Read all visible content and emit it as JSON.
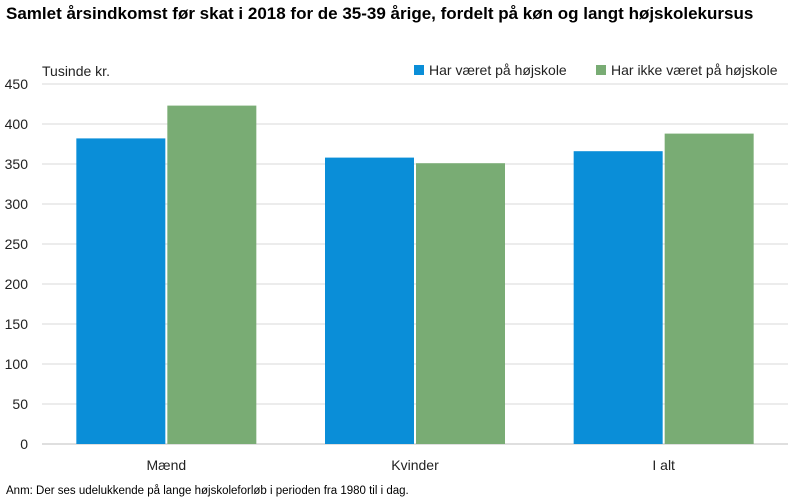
{
  "title": "Samlet årsindkomst før skat i 2018 for de 35-39 årige, fordelt på køn og langt højskolekursus",
  "note": "Anm: Der ses udelukkende på lange højskoleforløb i perioden fra 1980 til i dag.",
  "colors": {
    "series1": "#0a8ed8",
    "series2": "#79ac74",
    "grid": "#d9d9d9",
    "axis": "#bfbfbf"
  },
  "chart_data": {
    "type": "bar",
    "title": "Samlet årsindkomst før skat i 2018 for de 35-39 årige, fordelt på køn og langt højskolekursus",
    "ylabel": "Tusinde kr.",
    "xlabel": "",
    "categories": [
      "Mænd",
      "Kvinder",
      "I alt"
    ],
    "series": [
      {
        "name": "Har været på højskole",
        "values": [
          382,
          358,
          366
        ]
      },
      {
        "name": "Har ikke været på højskole",
        "values": [
          423,
          351,
          388
        ]
      }
    ],
    "ylim": [
      0,
      450
    ],
    "yticks": [
      0,
      50,
      100,
      150,
      200,
      250,
      300,
      350,
      400,
      450
    ],
    "grid": true,
    "legend": "top-right"
  }
}
